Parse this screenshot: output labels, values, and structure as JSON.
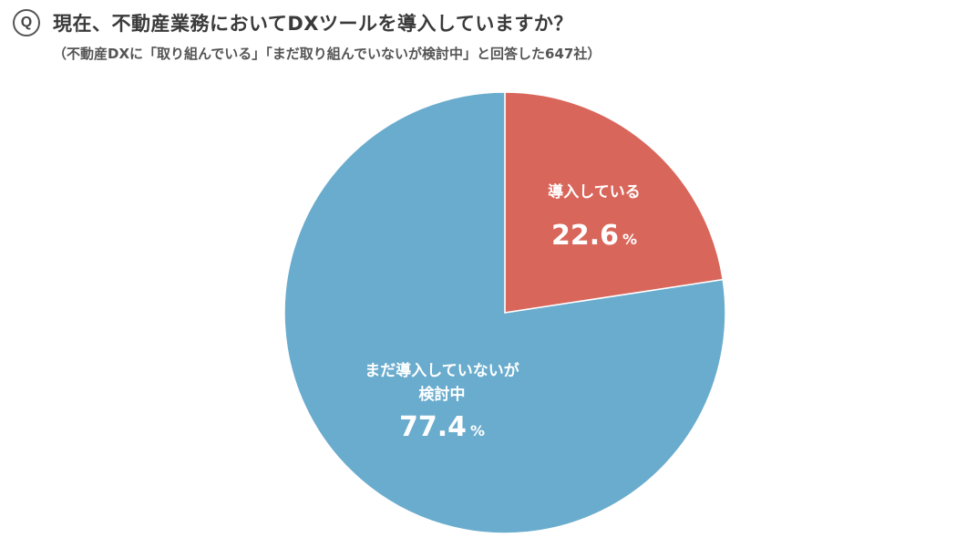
{
  "header": {
    "badge": "Q",
    "title": "現在、不動産業務においてDXツールを導入していますか？",
    "subtitle": "（不動産DXに「取り組んでいる」「まだ取り組んでいないが検討中」と回答した647社）"
  },
  "chart_data": {
    "type": "pie",
    "start_angle_deg": 0,
    "direction": "clockwise",
    "slices": [
      {
        "label_lines": [
          "導入している"
        ],
        "value": 22.6,
        "value_text": "22.6",
        "unit": "%",
        "color": "#d9665b"
      },
      {
        "label_lines": [
          "まだ導入していないが",
          "検討中"
        ],
        "value": 77.4,
        "value_text": "77.4",
        "unit": "%",
        "color": "#6aaccd"
      }
    ]
  }
}
